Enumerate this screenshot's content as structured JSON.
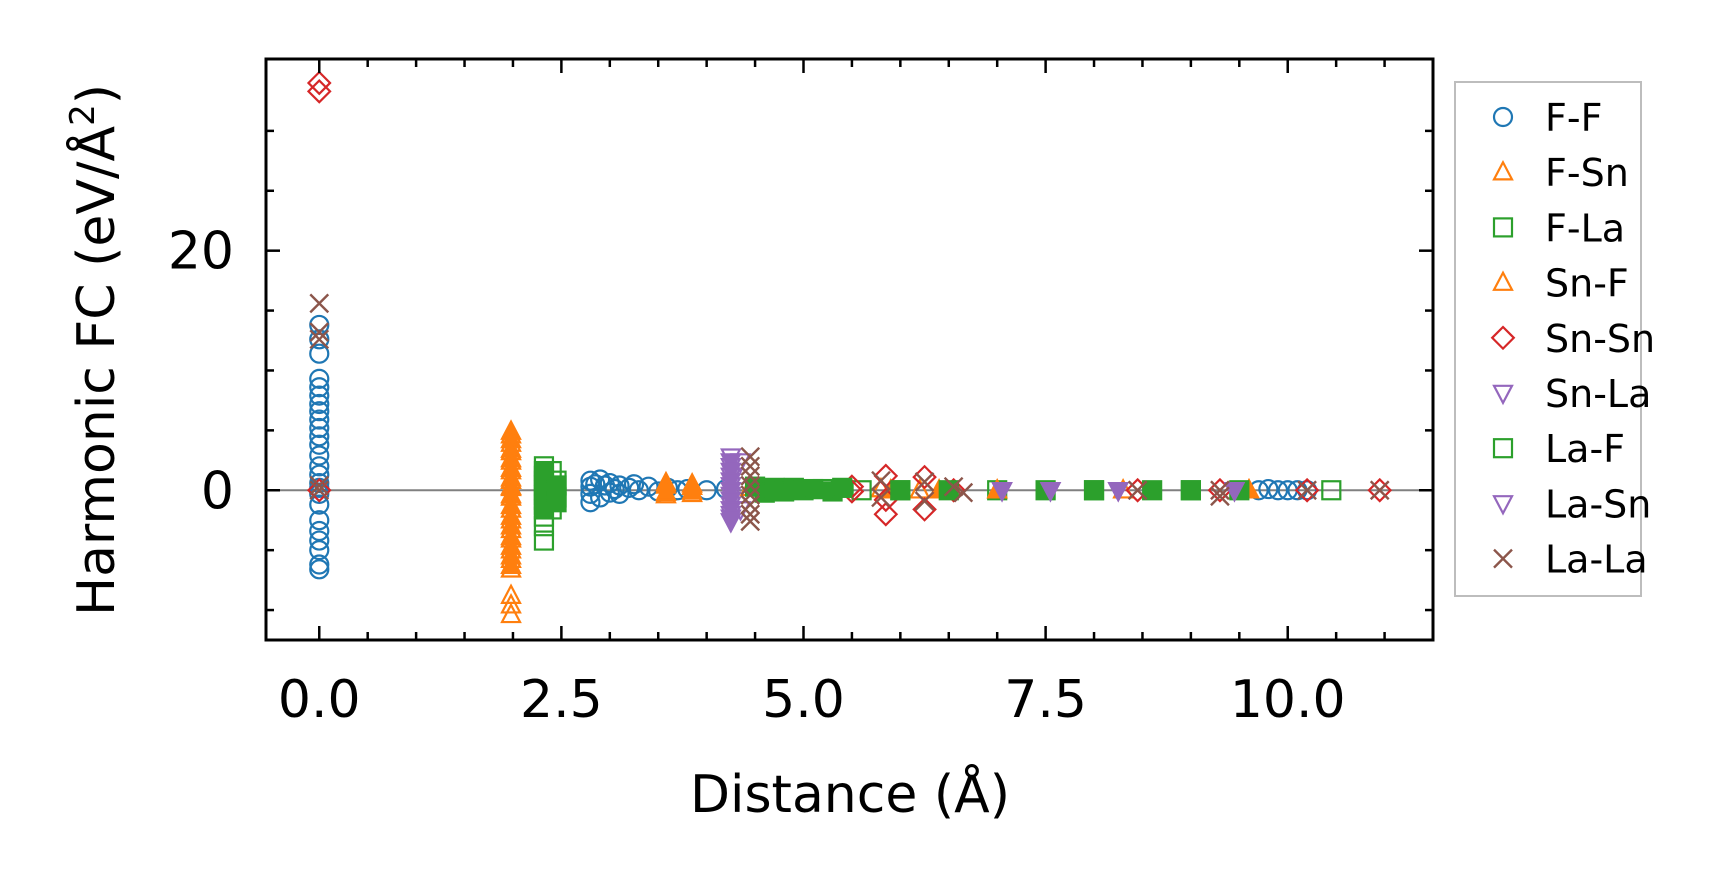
{
  "chart_data": {
    "type": "scatter",
    "title": "",
    "xlabel": "Distance (Å)",
    "ylabel_main": "Harmonic FC (eV/Å",
    "ylabel_sup": "2",
    "ylabel_close": ")",
    "xlim": [
      -0.55,
      11.5
    ],
    "ylim": [
      -12.5,
      36.0
    ],
    "xticks": [
      0.0,
      2.5,
      5.0,
      7.5,
      10.0
    ],
    "xtick_labels": [
      "0.0",
      "2.5",
      "5.0",
      "7.5",
      "10.0"
    ],
    "yticks": [
      0,
      20
    ],
    "ytick_labels": [
      "0",
      "20"
    ],
    "zero_line": 0,
    "legend_position": "outside-right",
    "series": [
      {
        "name": "F-F",
        "color": "#1f77b4",
        "marker": "circle",
        "fill": "none",
        "points": [
          [
            0,
            13.8
          ],
          [
            0,
            12.6
          ],
          [
            0,
            11.4
          ],
          [
            0,
            9.3
          ],
          [
            0,
            8.6
          ],
          [
            0,
            7.9
          ],
          [
            0,
            7.2
          ],
          [
            0,
            6.6
          ],
          [
            0,
            5.9
          ],
          [
            0,
            5.2
          ],
          [
            0,
            4.5
          ],
          [
            0,
            3.8
          ],
          [
            0,
            2.9
          ],
          [
            0,
            2.0
          ],
          [
            0,
            1.3
          ],
          [
            0,
            0.6
          ],
          [
            0,
            0.2
          ],
          [
            0,
            -0.3
          ],
          [
            0,
            -1.2
          ],
          [
            0,
            -2.5
          ],
          [
            0,
            -3.4
          ],
          [
            0,
            -4.2
          ],
          [
            0,
            -5.0
          ],
          [
            0,
            -6.2
          ],
          [
            0,
            -6.6
          ],
          [
            2.8,
            0.8
          ],
          [
            2.8,
            0.3
          ],
          [
            2.8,
            -0.3
          ],
          [
            2.8,
            -1.0
          ],
          [
            2.85,
            0.5
          ],
          [
            2.9,
            0.9
          ],
          [
            2.9,
            -0.6
          ],
          [
            2.95,
            0.4
          ],
          [
            3.0,
            -0.2
          ],
          [
            3.0,
            0.6
          ],
          [
            3.05,
            0.1
          ],
          [
            3.1,
            0.4
          ],
          [
            3.1,
            -0.3
          ],
          [
            3.2,
            0.2
          ],
          [
            3.25,
            0.5
          ],
          [
            3.3,
            0.0
          ],
          [
            3.4,
            0.3
          ],
          [
            3.5,
            -0.1
          ],
          [
            3.6,
            0.2
          ],
          [
            3.7,
            0.0
          ],
          [
            3.8,
            0.1
          ],
          [
            4.0,
            0.0
          ],
          [
            4.2,
            0.1
          ],
          [
            9.7,
            0.0
          ],
          [
            9.8,
            0.1
          ],
          [
            9.9,
            0.0
          ],
          [
            10.0,
            0.0
          ],
          [
            10.1,
            0.0
          ],
          [
            10.2,
            0.0
          ]
        ]
      },
      {
        "name": "F-Sn",
        "color": "#ff7f0e",
        "marker": "triangle-up",
        "fill": "none",
        "points": [
          [
            1.98,
            4.6
          ],
          [
            1.98,
            3.9
          ],
          [
            1.98,
            3.2
          ],
          [
            1.98,
            2.4
          ],
          [
            1.98,
            1.6
          ],
          [
            1.98,
            0.8
          ],
          [
            1.98,
            0.2
          ],
          [
            1.98,
            -0.6
          ],
          [
            1.98,
            -1.6
          ],
          [
            1.98,
            -2.5
          ],
          [
            1.98,
            -3.3
          ],
          [
            1.98,
            -4.1
          ],
          [
            1.98,
            -5.0
          ],
          [
            1.98,
            -5.8
          ],
          [
            1.98,
            -6.6
          ],
          [
            1.98,
            -8.8
          ],
          [
            1.98,
            -9.6
          ],
          [
            1.98,
            -10.4
          ],
          [
            3.58,
            0.6
          ],
          [
            3.58,
            -0.4
          ],
          [
            3.85,
            0.5
          ],
          [
            3.85,
            -0.3
          ],
          [
            4.45,
            0.2
          ],
          [
            5.8,
            0.1
          ],
          [
            6.2,
            0.0
          ],
          [
            8.3,
            0.0
          ],
          [
            9.6,
            0.0
          ]
        ]
      },
      {
        "name": "F-La",
        "color": "#2ca02c",
        "marker": "square",
        "fill": "none",
        "points": [
          [
            2.32,
            2.0
          ],
          [
            2.32,
            1.2
          ],
          [
            2.32,
            0.4
          ],
          [
            2.32,
            -0.4
          ],
          [
            2.32,
            -1.2
          ],
          [
            2.32,
            -2.2
          ],
          [
            2.32,
            -3.0
          ],
          [
            2.32,
            -4.2
          ],
          [
            2.4,
            1.6
          ],
          [
            2.4,
            -1.6
          ],
          [
            2.45,
            0.8
          ],
          [
            2.45,
            -0.6
          ],
          [
            4.6,
            0.1
          ],
          [
            4.8,
            0.0
          ],
          [
            5.2,
            0.1
          ],
          [
            5.6,
            0.0
          ],
          [
            6.0,
            0.0
          ],
          [
            7.0,
            0.0
          ],
          [
            8.0,
            0.0
          ],
          [
            9.0,
            0.0
          ],
          [
            10.45,
            0.0
          ]
        ]
      },
      {
        "name": "Sn-F",
        "color": "#ff7f0e",
        "marker": "triangle-up",
        "fill": "solid",
        "points": [
          [
            1.98,
            4.9
          ],
          [
            1.98,
            4.2
          ],
          [
            1.98,
            3.4
          ],
          [
            1.98,
            2.6
          ],
          [
            1.98,
            1.8
          ],
          [
            1.98,
            1.0
          ],
          [
            1.98,
            0.3
          ],
          [
            1.98,
            -0.4
          ],
          [
            1.98,
            -1.3
          ],
          [
            1.98,
            -2.2
          ],
          [
            1.98,
            -3.0
          ],
          [
            1.98,
            -3.9
          ],
          [
            1.98,
            -4.7
          ],
          [
            1.98,
            -5.5
          ],
          [
            1.98,
            -6.3
          ],
          [
            3.58,
            0.4
          ],
          [
            3.58,
            -0.2
          ],
          [
            3.85,
            0.3
          ],
          [
            3.85,
            -0.1
          ],
          [
            5.9,
            0.0
          ],
          [
            6.4,
            0.0
          ],
          [
            7.0,
            0.0
          ],
          [
            9.6,
            0.0
          ]
        ]
      },
      {
        "name": "Sn-Sn",
        "color": "#d62728",
        "marker": "diamond",
        "fill": "none",
        "points": [
          [
            0,
            34.0
          ],
          [
            0,
            33.3
          ],
          [
            0,
            0.0
          ],
          [
            5.5,
            0.3
          ],
          [
            5.5,
            -0.1
          ],
          [
            5.85,
            1.2
          ],
          [
            5.85,
            -0.8
          ],
          [
            5.85,
            -2.0
          ],
          [
            6.25,
            1.1
          ],
          [
            6.25,
            -1.6
          ],
          [
            6.55,
            0.0
          ],
          [
            8.45,
            0.0
          ],
          [
            9.3,
            0.0
          ],
          [
            10.2,
            0.0
          ],
          [
            10.95,
            0.0
          ]
        ]
      },
      {
        "name": "Sn-La",
        "color": "#9467bd",
        "marker": "triangle-down",
        "fill": "none",
        "points": [
          [
            4.25,
            2.8
          ],
          [
            4.25,
            2.0
          ],
          [
            4.25,
            1.2
          ],
          [
            4.25,
            0.4
          ],
          [
            4.25,
            -0.4
          ],
          [
            4.25,
            -1.2
          ],
          [
            4.25,
            -2.0
          ],
          [
            4.25,
            -2.6
          ],
          [
            4.35,
            2.4
          ],
          [
            4.35,
            -1.6
          ],
          [
            7.05,
            0.0
          ],
          [
            7.55,
            0.0
          ],
          [
            8.25,
            0.0
          ],
          [
            9.45,
            0.0
          ]
        ]
      },
      {
        "name": "La-F",
        "color": "#2ca02c",
        "marker": "square",
        "fill": "solid",
        "points": [
          [
            2.32,
            1.6
          ],
          [
            2.32,
            0.8
          ],
          [
            2.32,
            0.0
          ],
          [
            2.32,
            -0.8
          ],
          [
            2.32,
            -1.6
          ],
          [
            2.45,
            0.4
          ],
          [
            2.45,
            -1.0
          ],
          [
            4.5,
            0.3
          ],
          [
            4.6,
            -0.2
          ],
          [
            4.7,
            0.2
          ],
          [
            4.8,
            -0.1
          ],
          [
            4.9,
            0.2
          ],
          [
            5.0,
            0.0
          ],
          [
            5.1,
            0.1
          ],
          [
            5.3,
            -0.1
          ],
          [
            5.4,
            0.2
          ],
          [
            6.0,
            0.0
          ],
          [
            6.5,
            0.0
          ],
          [
            7.5,
            0.0
          ],
          [
            8.0,
            0.0
          ],
          [
            8.6,
            0.0
          ],
          [
            9.0,
            0.0
          ],
          [
            9.5,
            0.0
          ]
        ]
      },
      {
        "name": "La-Sn",
        "color": "#9467bd",
        "marker": "triangle-down",
        "fill": "solid",
        "points": [
          [
            4.25,
            2.4
          ],
          [
            4.25,
            1.6
          ],
          [
            4.25,
            0.8
          ],
          [
            4.25,
            0.0
          ],
          [
            4.25,
            -0.8
          ],
          [
            4.25,
            -1.6
          ],
          [
            4.25,
            -2.3
          ],
          [
            7.05,
            0.0
          ],
          [
            7.55,
            0.0
          ],
          [
            8.25,
            0.0
          ],
          [
            9.45,
            0.0
          ]
        ]
      },
      {
        "name": "La-La",
        "color": "#8c564b",
        "marker": "x",
        "fill": "none",
        "points": [
          [
            0,
            15.6
          ],
          [
            0,
            13.2
          ],
          [
            0,
            12.6
          ],
          [
            0,
            0.4
          ],
          [
            0,
            0.0
          ],
          [
            4.45,
            2.8
          ],
          [
            4.45,
            2.0
          ],
          [
            4.45,
            1.2
          ],
          [
            4.45,
            0.4
          ],
          [
            4.45,
            -0.4
          ],
          [
            4.45,
            -1.2
          ],
          [
            4.45,
            -2.0
          ],
          [
            4.45,
            -2.6
          ],
          [
            5.8,
            0.8
          ],
          [
            5.8,
            -0.6
          ],
          [
            6.25,
            0.7
          ],
          [
            6.25,
            -0.9
          ],
          [
            6.55,
            0.3
          ],
          [
            6.65,
            -0.2
          ],
          [
            8.45,
            0.0
          ],
          [
            9.3,
            0.0
          ],
          [
            9.3,
            -0.5
          ],
          [
            10.2,
            0.0
          ],
          [
            10.95,
            0.0
          ]
        ]
      }
    ]
  }
}
